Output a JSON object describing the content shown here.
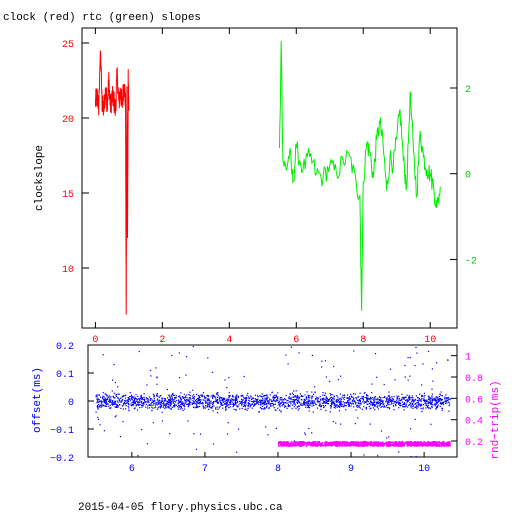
{
  "title": "clock (red) rtc (green) slopes",
  "footer": "2015-04-05 flory.physics.ubc.ca",
  "colors": {
    "clock": "#ff0000",
    "rtc": "#00ee00",
    "offset": "#0000ff",
    "rndtrip": "#ff00ff",
    "axis": "#000000"
  },
  "chart_data": [
    {
      "type": "line",
      "xlabel": "",
      "ylabel_left": "clockslope",
      "xlim": [
        -0.4,
        10.8
      ],
      "ylim_left": [
        6,
        26
      ],
      "ylim_right": [
        -3.6,
        3.4
      ],
      "x_ticks": [
        "0",
        "2",
        "4",
        "6",
        "8",
        "10"
      ],
      "y_ticks_left": [
        "10",
        "15",
        "20",
        "25"
      ],
      "y_ticks_right": [
        "-2",
        "0",
        "2"
      ],
      "series": [
        {
          "name": "clock",
          "axis": "left",
          "color": "#ff0000",
          "x": [
            0.0,
            0.05,
            0.1,
            0.15,
            0.2,
            0.25,
            0.3,
            0.35,
            0.4,
            0.45,
            0.5,
            0.55,
            0.6,
            0.65,
            0.7,
            0.75,
            0.8,
            0.85,
            0.9,
            0.92,
            0.94,
            0.96,
            0.98,
            1.0
          ],
          "y": [
            21.0,
            21.5,
            20.8,
            24.5,
            21.0,
            20.5,
            21.8,
            21.0,
            22.5,
            20.8,
            21.4,
            21.2,
            20.5,
            23.0,
            21.0,
            21.8,
            20.8,
            22.4,
            21.0,
            6.9,
            21.5,
            12.0,
            22.5,
            20.5
          ],
          "ylim": [
            6,
            26
          ]
        },
        {
          "name": "rtc",
          "axis": "right",
          "color": "#00ee00",
          "x": [
            5.5,
            5.55,
            5.6,
            5.7,
            5.8,
            5.9,
            6.0,
            6.2,
            6.4,
            6.6,
            6.8,
            7.0,
            7.2,
            7.4,
            7.6,
            7.8,
            7.9,
            7.95,
            8.0,
            8.1,
            8.2,
            8.3,
            8.4,
            8.5,
            8.6,
            8.7,
            8.8,
            8.9,
            9.0,
            9.1,
            9.2,
            9.3,
            9.4,
            9.5,
            9.6,
            9.7,
            9.8,
            9.9,
            10.0,
            10.1,
            10.2,
            10.3
          ],
          "y": [
            0.6,
            3.1,
            0.3,
            0.1,
            0.5,
            -0.2,
            0.6,
            0.1,
            0.4,
            0.0,
            -0.1,
            0.2,
            0.0,
            0.3,
            0.4,
            -0.3,
            -0.5,
            -3.2,
            -0.2,
            0.7,
            0.5,
            -0.1,
            0.8,
            1.2,
            0.6,
            -0.4,
            0.4,
            0.2,
            0.8,
            1.5,
            0.3,
            -0.3,
            1.9,
            0.5,
            -0.5,
            1.0,
            0.4,
            0.1,
            0.0,
            -0.3,
            -0.8,
            -0.3
          ],
          "ylim": [
            -3.6,
            3.4
          ]
        }
      ]
    },
    {
      "type": "scatter",
      "ylabel_left": "offset(ms)",
      "ylabel_right": "rnd−trip(ms)",
      "xlim": [
        5.4,
        10.45
      ],
      "ylim_left": [
        -0.2,
        0.2
      ],
      "ylim_right": [
        0.05,
        1.1
      ],
      "x_ticks": [
        "6",
        "7",
        "8",
        "9",
        "10"
      ],
      "y_ticks_left": [
        "0.2",
        "0.1",
        "0",
        "−0.1",
        "−0.2"
      ],
      "y_ticks_right": [
        "1",
        "0.8",
        "0.6",
        "0.4",
        "0.2"
      ],
      "series": [
        {
          "name": "offset",
          "axis": "left",
          "color": "#0000ff",
          "x_range": [
            5.5,
            10.35
          ],
          "center": 0.0,
          "spread": 0.02
        },
        {
          "name": "rnd-trip",
          "axis": "right",
          "color": "#ff00ff",
          "x_range": [
            8.0,
            10.35
          ],
          "center": 0.18,
          "spread": 0.02
        }
      ]
    }
  ]
}
